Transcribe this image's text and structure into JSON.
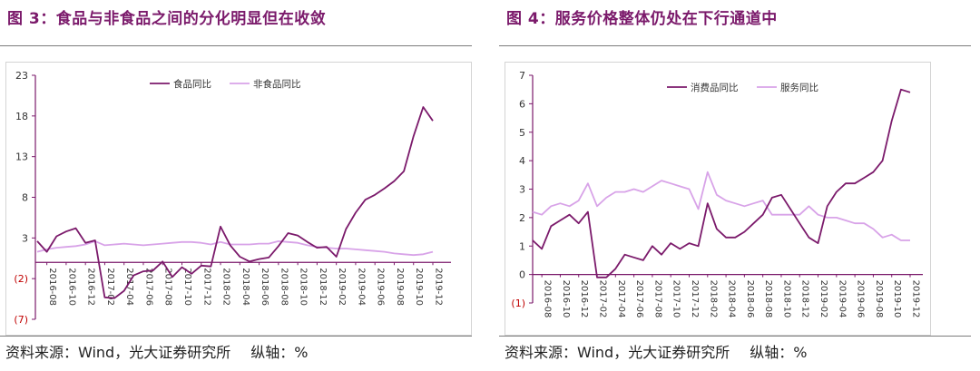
{
  "figures": [
    {
      "title": "图 3：食品与非食品之间的分化明显但在收敛",
      "source_label": "资料来源：Wind，光大证券研究所",
      "axis_note": "纵轴：%"
    },
    {
      "title": "图 4：服务价格整体仍处在下行通道中",
      "source_label": "资料来源：Wind，光大证券研究所",
      "axis_note": "纵轴：%"
    }
  ],
  "colors": {
    "title": "#7b1a6b",
    "series_dark": "#7b1a6b",
    "series_light": "#d8a3e8",
    "tick_negative": "#c00000",
    "axis": "#7b1a6b"
  },
  "chart_data": [
    {
      "type": "line",
      "title": "",
      "xlabel": "",
      "ylabel": "",
      "ylim": [
        -7,
        23
      ],
      "y_ticks": [
        23,
        18,
        13,
        8,
        3,
        -2,
        -7
      ],
      "y_tick_labels": [
        "23",
        "18",
        "13",
        "8",
        "3",
        "(2)",
        "(7)"
      ],
      "x_tick_labels": [
        "2016-08",
        "2016-10",
        "2016-12",
        "2017-02",
        "2017-04",
        "2017-06",
        "2017-08",
        "2017-10",
        "2017-12",
        "2018-02",
        "2018-04",
        "2018-06",
        "2018-08",
        "2018-10",
        "2018-12",
        "2019-02",
        "2019-04",
        "2019-06",
        "2019-08",
        "2019-10",
        "2019-12"
      ],
      "legend_position": "top-center",
      "grid": false,
      "x": [
        "2016-07",
        "2016-08",
        "2016-09",
        "2016-10",
        "2016-11",
        "2016-12",
        "2017-01",
        "2017-02",
        "2017-03",
        "2017-04",
        "2017-05",
        "2017-06",
        "2017-07",
        "2017-08",
        "2017-09",
        "2017-10",
        "2017-11",
        "2017-12",
        "2018-01",
        "2018-02",
        "2018-03",
        "2018-04",
        "2018-05",
        "2018-06",
        "2018-07",
        "2018-08",
        "2018-09",
        "2018-10",
        "2018-11",
        "2018-12",
        "2019-01",
        "2019-02",
        "2019-03",
        "2019-04",
        "2019-05",
        "2019-06",
        "2019-07",
        "2019-08",
        "2019-09",
        "2019-10",
        "2019-11",
        "2019-12"
      ],
      "series": [
        {
          "name": "食品同比",
          "color": "#7b1a6b",
          "values": [
            2.6,
            1.3,
            3.2,
            3.8,
            4.2,
            2.4,
            2.7,
            -4.3,
            -4.4,
            -3.5,
            -1.6,
            -1.1,
            -1.0,
            0.1,
            -1.8,
            -0.6,
            -1.4,
            -0.4,
            -0.5,
            4.4,
            2.1,
            0.7,
            0.1,
            0.4,
            0.6,
            2.0,
            3.6,
            3.3,
            2.5,
            1.8,
            1.9,
            0.7,
            4.1,
            6.1,
            7.7,
            8.3,
            9.1,
            10.0,
            11.2,
            15.5,
            19.1,
            17.4
          ]
        },
        {
          "name": "非食品同比",
          "color": "#d8a3e8",
          "values": [
            1.3,
            1.6,
            1.8,
            1.9,
            2.0,
            2.2,
            2.6,
            2.1,
            2.2,
            2.3,
            2.2,
            2.1,
            2.2,
            2.3,
            2.4,
            2.5,
            2.5,
            2.4,
            2.2,
            2.5,
            2.2,
            2.2,
            2.2,
            2.3,
            2.3,
            2.6,
            2.5,
            2.4,
            2.1,
            1.9,
            1.8,
            1.7,
            1.7,
            1.6,
            1.5,
            1.4,
            1.3,
            1.1,
            1.0,
            0.9,
            1.0,
            1.3
          ]
        }
      ]
    },
    {
      "type": "line",
      "title": "",
      "xlabel": "",
      "ylabel": "",
      "ylim": [
        -1,
        7
      ],
      "y_ticks": [
        7,
        6,
        5,
        4,
        3,
        2,
        1,
        0,
        -1
      ],
      "y_tick_labels": [
        "7",
        "6",
        "5",
        "4",
        "3",
        "2",
        "1",
        "0",
        "(1)"
      ],
      "x_tick_labels": [
        "2016-08",
        "2016-10",
        "2016-12",
        "2017-02",
        "2017-04",
        "2017-06",
        "2017-08",
        "2017-10",
        "2017-12",
        "2018-02",
        "2018-04",
        "2018-06",
        "2018-08",
        "2018-10",
        "2018-12",
        "2019-02",
        "2019-04",
        "2019-06",
        "2019-08",
        "2019-10",
        "2019-12"
      ],
      "legend_position": "top-center",
      "grid": false,
      "x": [
        "2016-07",
        "2016-08",
        "2016-09",
        "2016-10",
        "2016-11",
        "2016-12",
        "2017-01",
        "2017-02",
        "2017-03",
        "2017-04",
        "2017-05",
        "2017-06",
        "2017-07",
        "2017-08",
        "2017-09",
        "2017-10",
        "2017-11",
        "2017-12",
        "2018-01",
        "2018-02",
        "2018-03",
        "2018-04",
        "2018-05",
        "2018-06",
        "2018-07",
        "2018-08",
        "2018-09",
        "2018-10",
        "2018-11",
        "2018-12",
        "2019-01",
        "2019-02",
        "2019-03",
        "2019-04",
        "2019-05",
        "2019-06",
        "2019-07",
        "2019-08",
        "2019-09",
        "2019-10",
        "2019-11",
        "2019-12"
      ],
      "series": [
        {
          "name": "消费品同比",
          "color": "#7b1a6b",
          "values": [
            1.2,
            0.9,
            1.7,
            1.9,
            2.1,
            1.8,
            2.2,
            -0.1,
            -0.1,
            0.2,
            0.7,
            0.6,
            0.5,
            1.0,
            0.7,
            1.1,
            0.9,
            1.1,
            1.0,
            2.5,
            1.6,
            1.3,
            1.3,
            1.5,
            1.8,
            2.1,
            2.7,
            2.8,
            2.3,
            1.8,
            1.3,
            1.1,
            2.4,
            2.9,
            3.2,
            3.2,
            3.4,
            3.6,
            4.0,
            5.4,
            6.5,
            6.4
          ]
        },
        {
          "name": "服务同比",
          "color": "#d8a3e8",
          "values": [
            2.2,
            2.1,
            2.4,
            2.5,
            2.4,
            2.6,
            3.2,
            2.4,
            2.7,
            2.9,
            2.9,
            3.0,
            2.9,
            3.1,
            3.3,
            3.2,
            3.1,
            3.0,
            2.3,
            3.6,
            2.8,
            2.6,
            2.5,
            2.4,
            2.5,
            2.6,
            2.1,
            2.1,
            2.1,
            2.1,
            2.4,
            2.1,
            2.0,
            2.0,
            1.9,
            1.8,
            1.8,
            1.6,
            1.3,
            1.4,
            1.2,
            1.2
          ]
        }
      ]
    }
  ]
}
